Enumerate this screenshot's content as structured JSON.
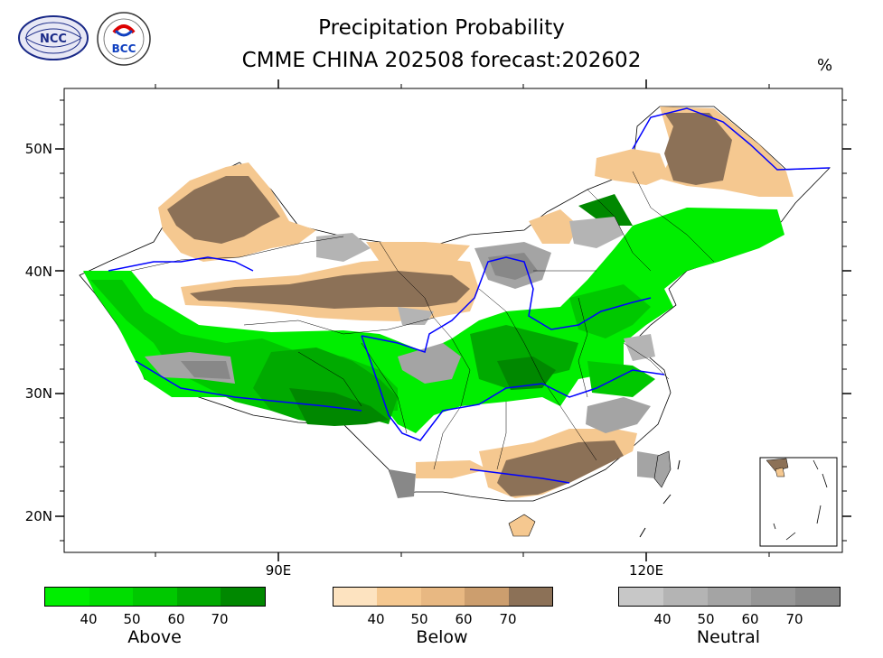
{
  "title_line1": "Precipitation Probability",
  "title_line2": "CMME CHINA 202508 forecast:202602",
  "unit": "%",
  "logos": {
    "left": "NCC",
    "right": "BCC",
    "right_caption": "BEIJING CLIMATE CENTER"
  },
  "axes": {
    "lat_ticks": [
      "50N",
      "40N",
      "30N",
      "20N"
    ],
    "lon_ticks": [
      "90E",
      "120E"
    ]
  },
  "legends": [
    {
      "name": "Above",
      "labels": [
        "40",
        "50",
        "60",
        "70"
      ],
      "colors": [
        "#00ee00",
        "#00dd00",
        "#00c800",
        "#00aa00",
        "#008800"
      ]
    },
    {
      "name": "Below",
      "labels": [
        "40",
        "50",
        "60",
        "70"
      ],
      "colors": [
        "#fde3c0",
        "#f5c890",
        "#e8b882",
        "#cc9e6e",
        "#8c7157"
      ]
    },
    {
      "name": "Neutral",
      "labels": [
        "40",
        "50",
        "60",
        "70"
      ],
      "colors": [
        "#c7c7c7",
        "#b4b4b4",
        "#a4a4a4",
        "#969696",
        "#888888"
      ]
    }
  ],
  "colors": {
    "river": "#0000ff",
    "border": "#000000"
  }
}
